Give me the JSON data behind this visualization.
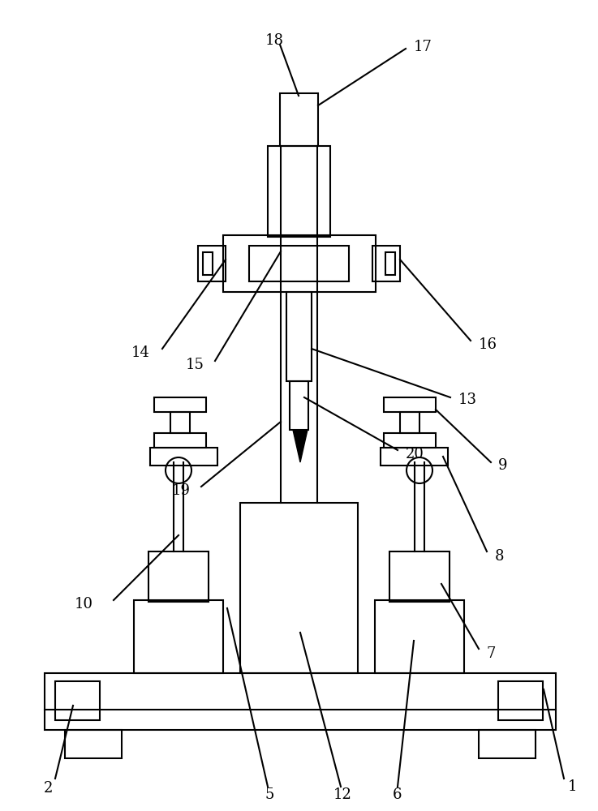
{
  "bg_color": "#ffffff",
  "line_color": "#000000",
  "lw": 1.5,
  "lw_thin": 1.0
}
